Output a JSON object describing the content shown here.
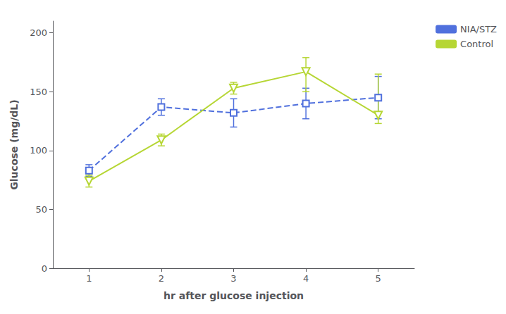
{
  "chart_data": {
    "type": "line",
    "x": [
      1,
      2,
      3,
      4,
      5
    ],
    "series": [
      {
        "name": "NIA/STZ",
        "values": [
          83,
          137,
          132,
          140,
          145
        ],
        "error_lo": [
          5,
          7,
          12,
          13,
          18
        ],
        "error_hi": [
          5,
          7,
          12,
          13,
          18
        ],
        "marker": "square",
        "line_style": "dashed"
      },
      {
        "name": "Control",
        "values": [
          74,
          109,
          153,
          167,
          130
        ],
        "error_lo": [
          5,
          5,
          5,
          17,
          7
        ],
        "error_hi": [
          5,
          5,
          5,
          12,
          35
        ],
        "marker": "triangle-down",
        "line_style": "solid"
      }
    ],
    "xlabel": "hr after glucose injection",
    "ylabel": "Glucose (mg/dL)",
    "xlim": [
      0.5,
      5.5
    ],
    "ylim": [
      0,
      210
    ],
    "xticks": [
      1,
      2,
      3,
      4,
      5
    ],
    "yticks": [
      0,
      50,
      100,
      150,
      200
    ],
    "grid": false,
    "legend": "upper right"
  }
}
